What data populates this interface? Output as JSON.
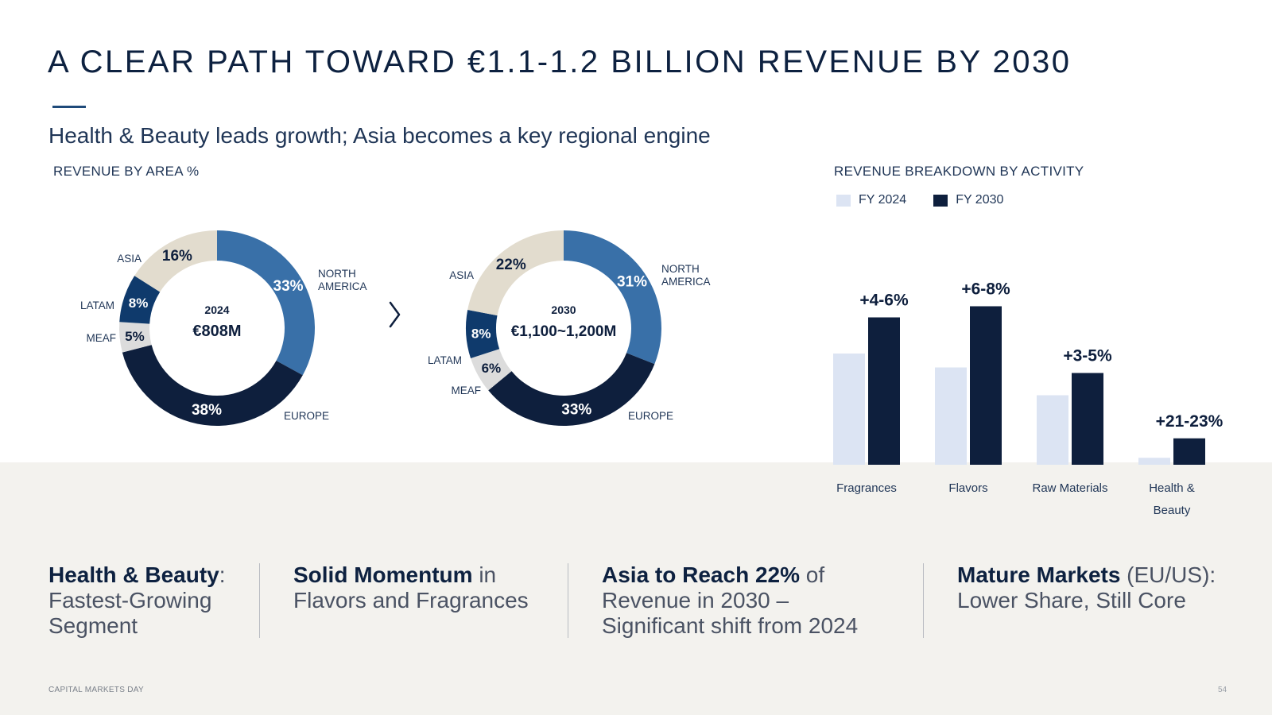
{
  "page": {
    "title": "A CLEAR PATH TOWARD €1.1-1.2 BILLION REVENUE BY 2030",
    "subtitle": "Health & Beauty leads growth; Asia becomes a key regional engine",
    "area_label": "REVENUE BY AREA %",
    "activity_label": "REVENUE BREAKDOWN BY ACTIVITY",
    "footer": "CAPITAL MARKETS DAY",
    "page_number": "54"
  },
  "colors": {
    "navy": "#0e1f3d",
    "steel_blue": "#3970a8",
    "dark_blue": "#0f3a6c",
    "beige": "#e2dcce",
    "light_gray": "#dcdcdc",
    "light_blue": "#dce4f3",
    "band": "#f3f2ee"
  },
  "highlights": [
    {
      "bold": "Health & Beauty",
      "rest": ": Fastest-Growing Segment"
    },
    {
      "bold": "Solid Momentum",
      "rest": " in Flavors and Fragrances"
    },
    {
      "bold": "Asia to Reach 22%",
      "rest": " of Revenue in 2030 – Significant shift from 2024"
    },
    {
      "bold": "Mature Markets",
      "rest": " (EU/US): Lower Share, Still Core"
    }
  ],
  "chart_data": [
    {
      "type": "pie",
      "style": "donut",
      "center_year": "2024",
      "center_value": "€808M",
      "slices": [
        {
          "label": "NORTH AMERICA",
          "value": 33,
          "display": "33%",
          "color": "#3970a8"
        },
        {
          "label": "EUROPE",
          "value": 38,
          "display": "38%",
          "color": "#0e1f3d"
        },
        {
          "label": "MEAF",
          "value": 5,
          "display": "5%",
          "color": "#dcdcdc"
        },
        {
          "label": "LATAM",
          "value": 8,
          "display": "8%",
          "color": "#0f3a6c"
        },
        {
          "label": "ASIA",
          "value": 16,
          "display": "16%",
          "color": "#e2dcce"
        }
      ]
    },
    {
      "type": "pie",
      "style": "donut",
      "center_year": "2030",
      "center_value": "€1,100~1,200M",
      "slices": [
        {
          "label": "NORTH AMERICA",
          "value": 31,
          "display": "31%",
          "color": "#3970a8"
        },
        {
          "label": "EUROPE",
          "value": 33,
          "display": "33%",
          "color": "#0e1f3d"
        },
        {
          "label": "MEAF",
          "value": 6,
          "display": "6%",
          "color": "#dcdcdc"
        },
        {
          "label": "LATAM",
          "value": 8,
          "display": "8%",
          "color": "#0f3a6c"
        },
        {
          "label": "ASIA",
          "value": 22,
          "display": "22%",
          "color": "#e2dcce"
        }
      ]
    },
    {
      "type": "bar",
      "title": "REVENUE BREAKDOWN BY ACTIVITY",
      "categories": [
        "Fragrances",
        "Flavors",
        "Raw Materials",
        "Health & Beauty"
      ],
      "series": [
        {
          "name": "FY 2024",
          "values": [
            40,
            35,
            25,
            2.5
          ],
          "color": "#dce4f3"
        },
        {
          "name": "FY 2030",
          "values": [
            53,
            57,
            33,
            9.5
          ],
          "color": "#0e1f3d"
        }
      ],
      "annotations": [
        "+4-6%",
        "+6-8%",
        "+3-5%",
        "+21-23%"
      ],
      "ylim": [
        0,
        60
      ],
      "grid": false,
      "legend": "top-left"
    }
  ]
}
